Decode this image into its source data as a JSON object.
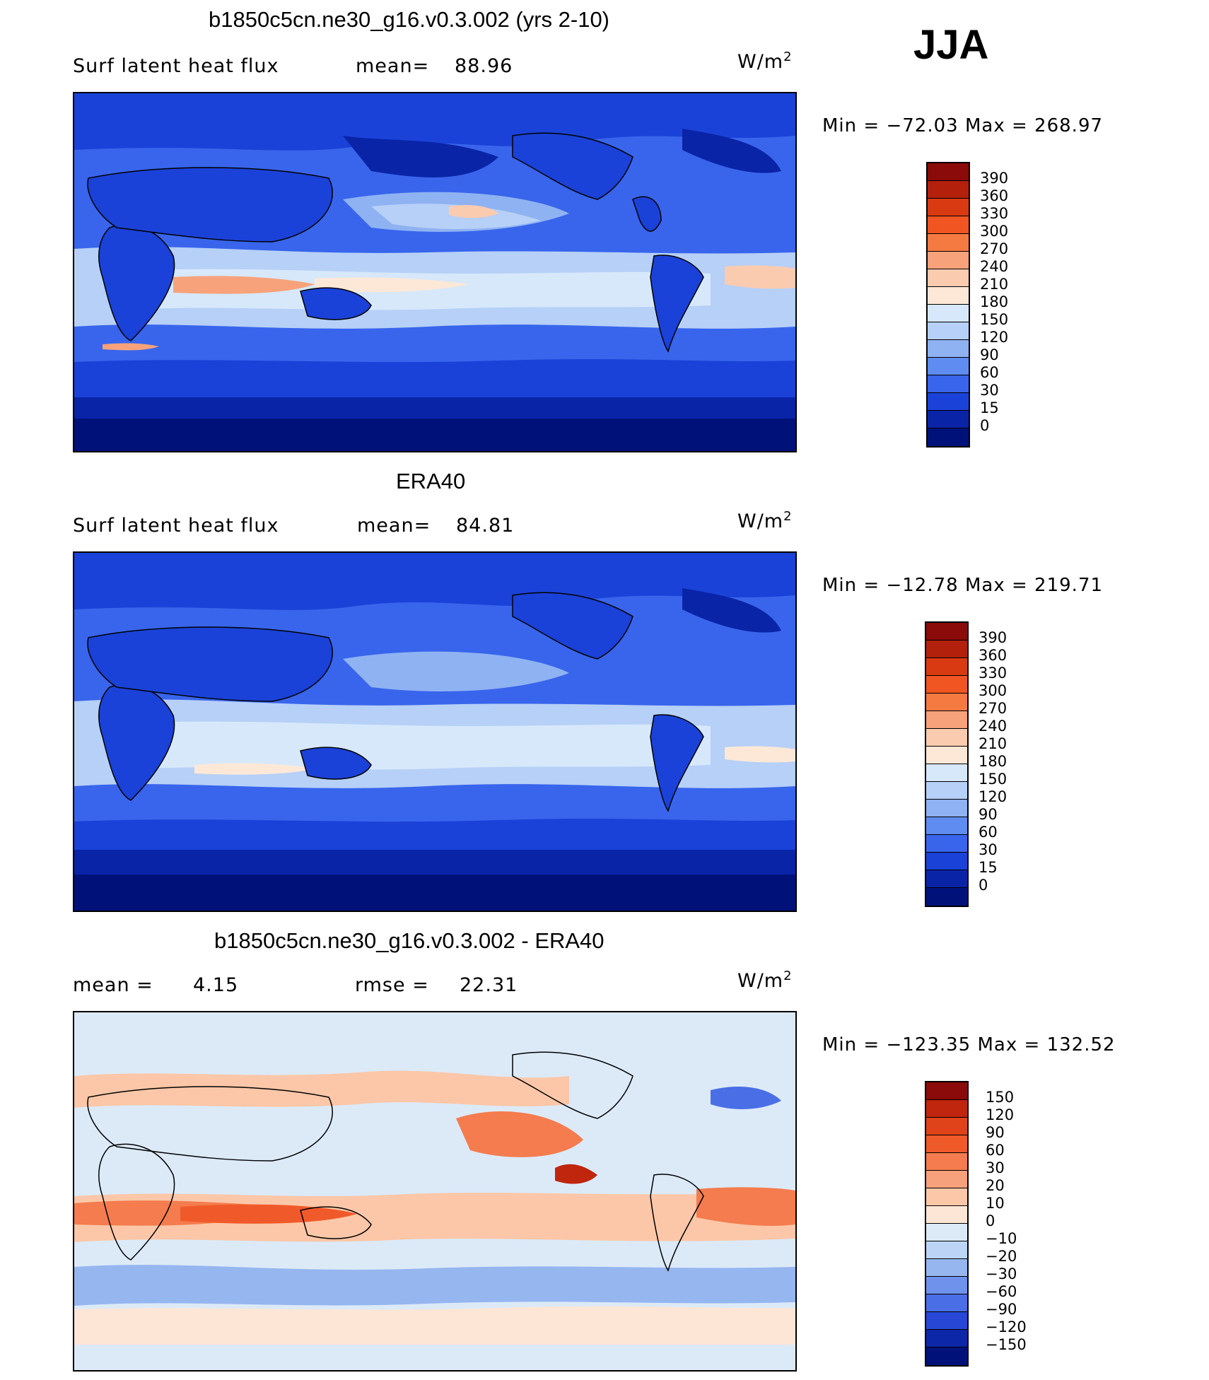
{
  "season": "JJA",
  "panels": [
    {
      "title": "b1850c5cn.ne30_g16.v0.3.002 (yrs 2-10)",
      "left_label": "Surf latent heat flux",
      "stat_label": "mean=",
      "stat_value": "88.96",
      "stat2_label": "",
      "stat2_value": "",
      "units_base": "W/m",
      "units_exp": "2",
      "min_label": "Min",
      "min_value": "−72.03",
      "max_label": "Max",
      "max_value": "268.97"
    },
    {
      "title": "ERA40",
      "left_label": "Surf latent heat flux",
      "stat_label": "mean=",
      "stat_value": "84.81",
      "stat2_label": "",
      "stat2_value": "",
      "units_base": "W/m",
      "units_exp": "2",
      "min_label": "Min",
      "min_value": "−12.78",
      "max_label": "Max",
      "max_value": "219.71"
    },
    {
      "title": "b1850c5cn.ne30_g16.v0.3.002 - ERA40",
      "left_label": "mean =",
      "stat_label": "",
      "stat_value": "4.15",
      "stat2_label": "rmse =",
      "stat2_value": "22.31",
      "units_base": "W/m",
      "units_exp": "2",
      "min_label": "Min",
      "min_value": "−123.35",
      "max_label": "Max",
      "max_value": "132.52"
    }
  ],
  "chart_data": [
    {
      "type": "heatmap",
      "title": "b1850c5cn.ne30_g16.v0.3.002 (yrs 2-10)",
      "variable": "Surf latent heat flux",
      "units": "W/m2",
      "mean": 88.96,
      "min": -72.03,
      "max": 268.97,
      "colorbar_levels": [
        "390",
        "360",
        "330",
        "300",
        "270",
        "240",
        "210",
        "180",
        "150",
        "120",
        "90",
        "60",
        "30",
        "15",
        "0"
      ],
      "colorbar_colors": [
        "#8b0a0a",
        "#b3200c",
        "#d93a12",
        "#f05522",
        "#f57a42",
        "#f7a27a",
        "#fbcbb0",
        "#fde8d8",
        "#d6e8fa",
        "#b6d0f7",
        "#8fb2f2",
        "#5f8cf0",
        "#3865ec",
        "#1a42d8",
        "#0a24a8",
        "#00127a"
      ]
    },
    {
      "type": "heatmap",
      "title": "ERA40",
      "variable": "Surf latent heat flux",
      "units": "W/m2",
      "mean": 84.81,
      "min": -12.78,
      "max": 219.71,
      "colorbar_levels": [
        "390",
        "360",
        "330",
        "300",
        "270",
        "240",
        "210",
        "180",
        "150",
        "120",
        "90",
        "60",
        "30",
        "15",
        "0"
      ],
      "colorbar_colors": [
        "#8b0a0a",
        "#b3200c",
        "#d93a12",
        "#f05522",
        "#f57a42",
        "#f7a27a",
        "#fbcbb0",
        "#fde8d8",
        "#d6e8fa",
        "#b6d0f7",
        "#8fb2f2",
        "#5f8cf0",
        "#3865ec",
        "#1a42d8",
        "#0a24a8",
        "#00127a"
      ]
    },
    {
      "type": "heatmap",
      "title": "b1850c5cn.ne30_g16.v0.3.002 - ERA40",
      "units": "W/m2",
      "mean": 4.15,
      "rmse": 22.31,
      "min": -123.35,
      "max": 132.52,
      "colorbar_levels": [
        "150",
        "120",
        "90",
        "60",
        "30",
        "20",
        "10",
        "0",
        "−10",
        "−20",
        "−30",
        "−60",
        "−90",
        "−120",
        "−150"
      ],
      "colorbar_colors": [
        "#8b0a0a",
        "#c0250e",
        "#e0431a",
        "#f05a2a",
        "#f47c4e",
        "#f7a07c",
        "#fbc7a8",
        "#fde6d6",
        "#dceaf8",
        "#bcd4f6",
        "#96b6f0",
        "#6f92ec",
        "#4a6ee6",
        "#2748d6",
        "#0c28a8",
        "#00127a"
      ]
    }
  ]
}
